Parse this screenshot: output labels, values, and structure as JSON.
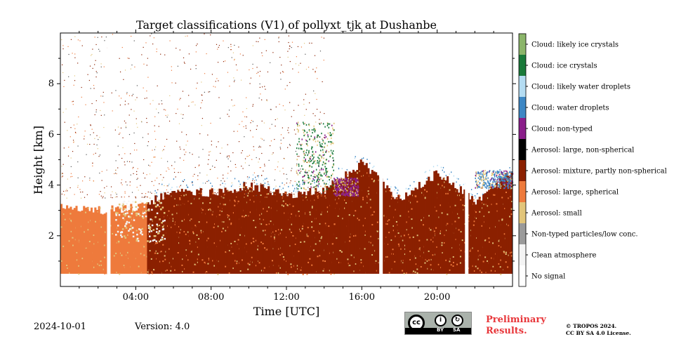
{
  "chart_data": {
    "type": "heatmap",
    "title": "Target classifications (V1) of pollyxt_tjk at Dushanbe",
    "xlabel": "Time [UTC]",
    "ylabel": "Height [km]",
    "xlim": [
      0,
      24
    ],
    "ylim": [
      0,
      10
    ],
    "x_ticks": [
      {
        "value": 4,
        "label": "04:00"
      },
      {
        "value": 8,
        "label": "08:00"
      },
      {
        "value": 12,
        "label": "12:00"
      },
      {
        "value": 16,
        "label": "16:00"
      },
      {
        "value": 20,
        "label": "20:00"
      }
    ],
    "y_ticks": [
      {
        "value": 2,
        "label": "2"
      },
      {
        "value": 4,
        "label": "4"
      },
      {
        "value": 6,
        "label": "6"
      },
      {
        "value": 8,
        "label": "8"
      }
    ],
    "legend_placement": "right colorbar",
    "classes": [
      {
        "label": "Cloud: likely ice crystals",
        "color": "#8bb56a"
      },
      {
        "label": "Cloud: ice crystals",
        "color": "#1a7a3a"
      },
      {
        "label": "Cloud: likely water droplets",
        "color": "#b4dcf2"
      },
      {
        "label": "Cloud: water droplets",
        "color": "#3d87c4"
      },
      {
        "label": "Cloud: non-typed",
        "color": "#8a1e8a"
      },
      {
        "label": "Aerosol: large, non-spherical",
        "color": "#000000"
      },
      {
        "label": "Aerosol: mixture, partly non-spherical",
        "color": "#8b2000"
      },
      {
        "label": "Aerosol: large, spherical",
        "color": "#ee7a3c"
      },
      {
        "label": "Aerosol: small",
        "color": "#e2c57a"
      },
      {
        "label": "Non-typed particles/low conc.",
        "color": "#9a9a9a"
      },
      {
        "label": "Clean atmosphere",
        "color": "#f4f4f4"
      },
      {
        "label": "No signal",
        "color": "#ffffff"
      }
    ],
    "data_gaps_utc": [
      2.55,
      17.0,
      21.55
    ],
    "aerosol_layer_top_km": [
      [
        0,
        3.2
      ],
      [
        2,
        3.0
      ],
      [
        4,
        3.1
      ],
      [
        6,
        3.8
      ],
      [
        8,
        3.7
      ],
      [
        10,
        4.0
      ],
      [
        12,
        3.6
      ],
      [
        14,
        3.8
      ],
      [
        16,
        4.9
      ],
      [
        18,
        3.4
      ],
      [
        20,
        4.5
      ],
      [
        22,
        3.3
      ],
      [
        24,
        4.6
      ]
    ],
    "cloud_features": [
      {
        "class": "Cloud: ice crystals",
        "x_range": [
          12.5,
          14.5
        ],
        "y_range": [
          3.8,
          6.5
        ]
      },
      {
        "class": "Cloud: non-typed",
        "x_range": [
          14.5,
          15.8
        ],
        "y_range": [
          3.6,
          4.3
        ]
      },
      {
        "class": "Cloud: water droplets",
        "x_range": [
          22.0,
          24.0
        ],
        "y_range": [
          3.9,
          4.6
        ]
      }
    ]
  },
  "footer": {
    "date": "2024-10-01",
    "version": "Version: 4.0",
    "preliminary_line1": "Preliminary",
    "preliminary_line2": "Results.",
    "copyright_line1": "© TROPOS 2024.",
    "copyright_line2": "CC BY SA 4.0 License.",
    "license_badge": {
      "cc": "cc",
      "by": "BY",
      "sa": "SA"
    }
  }
}
